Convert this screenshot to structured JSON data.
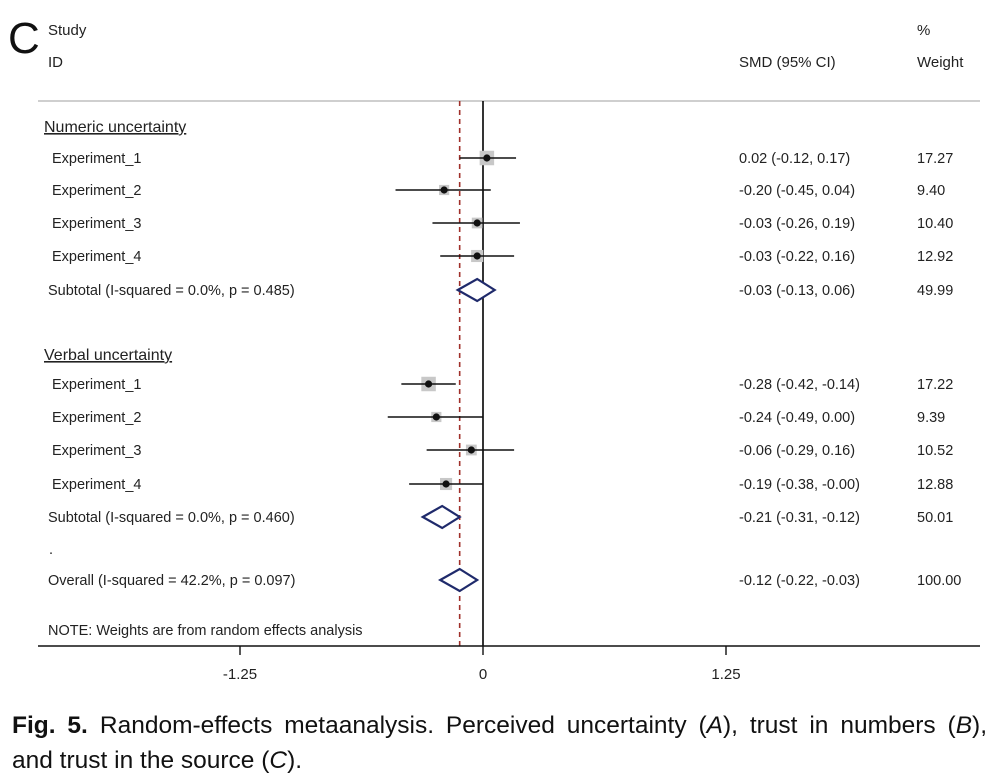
{
  "chart_data": {
    "type": "forest",
    "panel_label": "C",
    "headers": {
      "study_line1": "Study",
      "study_line2": "ID",
      "effect": "SMD (95% CI)",
      "weight_line1": "%",
      "weight_line2": "Weight"
    },
    "xaxis": {
      "ticks": [
        -1.25,
        0,
        1.25
      ],
      "tick_labels": [
        "-1.25",
        "0",
        "1.25"
      ],
      "range": [
        -2.25,
        2.5
      ],
      "null_line": 0,
      "overall_line": -0.12
    },
    "groups": [
      {
        "heading": "Numeric uncertainty",
        "studies": [
          {
            "label": "Experiment_1",
            "est": 0.02,
            "lo": -0.12,
            "hi": 0.17,
            "ci_text": "0.02 (-0.12, 0.17)",
            "weight": "17.27"
          },
          {
            "label": "Experiment_2",
            "est": -0.2,
            "lo": -0.45,
            "hi": 0.04,
            "ci_text": "-0.20 (-0.45, 0.04)",
            "weight": "9.40"
          },
          {
            "label": "Experiment_3",
            "est": -0.03,
            "lo": -0.26,
            "hi": 0.19,
            "ci_text": "-0.03 (-0.26, 0.19)",
            "weight": "10.40"
          },
          {
            "label": "Experiment_4",
            "est": -0.03,
            "lo": -0.22,
            "hi": 0.16,
            "ci_text": "-0.03 (-0.22, 0.16)",
            "weight": "12.92"
          }
        ],
        "subtotal": {
          "label": "Subtotal  (I-squared = 0.0%, p = 0.485)",
          "est": -0.03,
          "lo": -0.13,
          "hi": 0.06,
          "ci_text": "-0.03 (-0.13, 0.06)",
          "weight": "49.99"
        }
      },
      {
        "heading": "Verbal uncertainty",
        "studies": [
          {
            "label": "Experiment_1",
            "est": -0.28,
            "lo": -0.42,
            "hi": -0.14,
            "ci_text": "-0.28 (-0.42, -0.14)",
            "weight": "17.22"
          },
          {
            "label": "Experiment_2",
            "est": -0.24,
            "lo": -0.49,
            "hi": 0.0,
            "ci_text": "-0.24 (-0.49, 0.00)",
            "weight": "9.39"
          },
          {
            "label": "Experiment_3",
            "est": -0.06,
            "lo": -0.29,
            "hi": 0.16,
            "ci_text": "-0.06 (-0.29, 0.16)",
            "weight": "10.52"
          },
          {
            "label": "Experiment_4",
            "est": -0.19,
            "lo": -0.38,
            "hi": -0.0,
            "ci_text": "-0.19 (-0.38, -0.00)",
            "weight": "12.88"
          }
        ],
        "subtotal": {
          "label": "Subtotal  (I-squared = 0.0%, p = 0.460)",
          "est": -0.21,
          "lo": -0.31,
          "hi": -0.12,
          "ci_text": "-0.21 (-0.31, -0.12)",
          "weight": "50.01"
        }
      }
    ],
    "dot_label": ".",
    "overall": {
      "label": "Overall  (I-squared = 42.2%, p = 0.097)",
      "est": -0.12,
      "lo": -0.22,
      "hi": -0.03,
      "ci_text": "-0.12 (-0.22, -0.03)",
      "weight": "100.00"
    },
    "note": "NOTE: Weights are from random effects analysis",
    "colors": {
      "diamond": "#1f2a6b",
      "null_line": "#000000",
      "overall_line": "#a0302a",
      "box": "#c8c8c8",
      "text": "#222222"
    }
  },
  "caption": {
    "fig_label": "Fig. 5.",
    "part1": "Random-effects metaanalysis. Perceived uncertainty (",
    "a": "A",
    "part2": "), trust in numbers (",
    "b": "B",
    "part3": "), and trust in the source (",
    "c": "C",
    "part4": ")."
  }
}
